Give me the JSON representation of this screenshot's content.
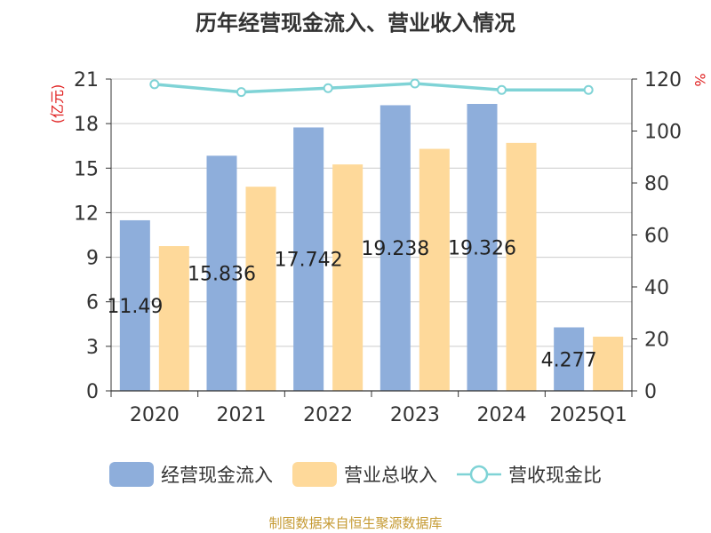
{
  "title": "历年经营现金流入、营业收入情况",
  "source": "制图数据来自恒生聚源数据库",
  "chart_data": {
    "type": "bar",
    "categories": [
      "2020",
      "2021",
      "2022",
      "2023",
      "2024",
      "2025Q1"
    ],
    "y_left": {
      "label": "(亿元)",
      "ylim": [
        0,
        21
      ],
      "ticks": [
        0,
        3,
        6,
        9,
        12,
        15,
        18,
        21
      ]
    },
    "y_right": {
      "label": "%",
      "ylim": [
        0,
        120
      ],
      "ticks": [
        0,
        20,
        40,
        60,
        80,
        100,
        120
      ]
    },
    "series": [
      {
        "name": "经营现金流入",
        "type": "bar",
        "axis": "left",
        "color": "#8eaedb",
        "values": [
          11.49,
          15.836,
          17.742,
          19.238,
          19.326,
          4.277
        ],
        "labels": [
          "11.49",
          "15.836",
          "17.742",
          "19.238",
          "19.326",
          "4.277"
        ]
      },
      {
        "name": "营业总收入",
        "type": "bar",
        "axis": "left",
        "color": "#fed99a",
        "values": [
          9.75,
          13.75,
          15.25,
          16.3,
          16.7,
          3.65
        ]
      },
      {
        "name": "营收现金比",
        "type": "line",
        "axis": "right",
        "color": "#7fd3d6",
        "values": [
          118,
          115,
          116.5,
          118.3,
          115.8,
          115.8
        ]
      }
    ],
    "grid": true,
    "legend_position": "bottom"
  }
}
